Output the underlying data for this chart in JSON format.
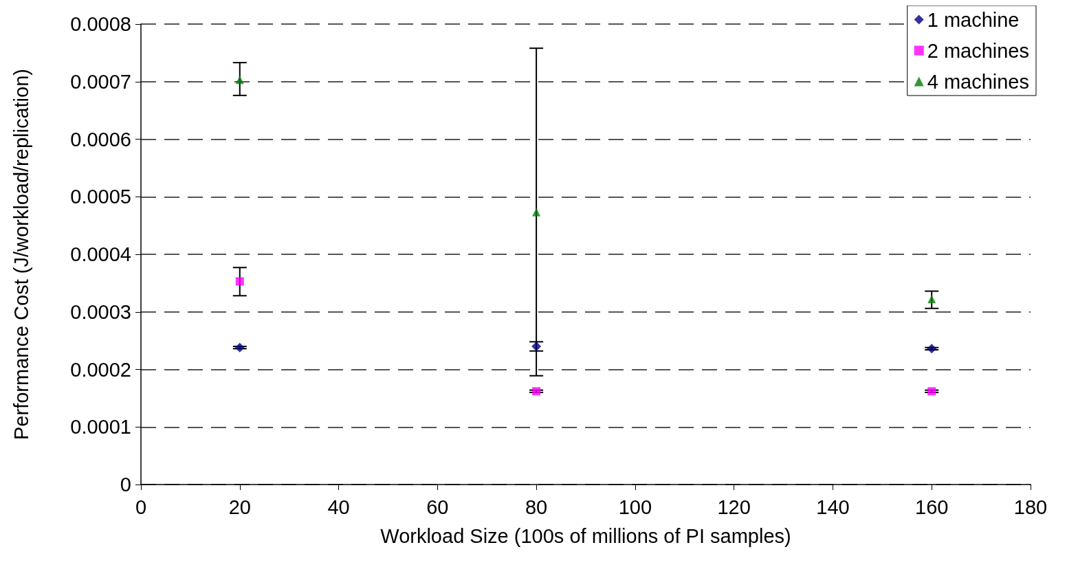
{
  "chart_data": {
    "type": "scatter",
    "xlabel": "Workload Size (100s of millions of PI samples)",
    "ylabel": "Performance Cost (J/workload/replication)",
    "x": [
      20,
      80,
      160
    ],
    "series": [
      {
        "name": "1 machine",
        "color": "#000080",
        "marker": "diamond",
        "values": [
          0.000238,
          0.00024,
          0.000236
        ],
        "errors": [
          2e-06,
          [
            0.000232,
            0.000248
          ],
          2e-06
        ]
      },
      {
        "name": "2 machines",
        "color": "#ff00ff",
        "marker": "square",
        "values": [
          0.000353,
          0.000162,
          0.000162
        ],
        "errors": [
          [
            0.000328,
            0.000377
          ],
          2e-06,
          2e-06
        ]
      },
      {
        "name": "4 machines",
        "color": "#008000",
        "marker": "triangle",
        "values": [
          0.000703,
          0.000473,
          0.000322
        ],
        "errors": [
          [
            0.000676,
            0.000733
          ],
          [
            0.000189,
            0.000758
          ],
          [
            0.000306,
            0.000336
          ]
        ]
      }
    ],
    "xlim": [
      0,
      180
    ],
    "xticks": [
      0,
      20,
      40,
      60,
      80,
      100,
      120,
      140,
      160,
      180
    ],
    "ylim": [
      0,
      0.0008
    ],
    "yticks": [
      0,
      0.0001,
      0.0002,
      0.0003,
      0.0004,
      0.0005,
      0.0006,
      0.0007,
      0.0008
    ],
    "grid": "y",
    "legend": "top right"
  }
}
